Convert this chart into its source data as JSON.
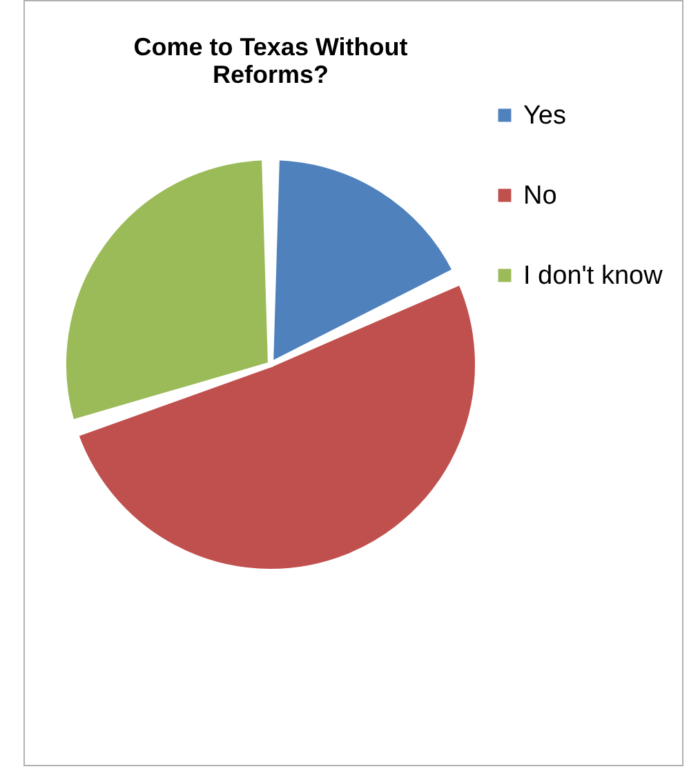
{
  "chart_data": {
    "type": "pie",
    "title": "Come to Texas Without Reforms?",
    "categories": [
      "Yes",
      "No",
      "I don't know"
    ],
    "values": [
      18,
      52,
      30
    ],
    "colors": [
      "#4f81bd",
      "#c0504d",
      "#9bbb59"
    ],
    "legend": "right"
  }
}
